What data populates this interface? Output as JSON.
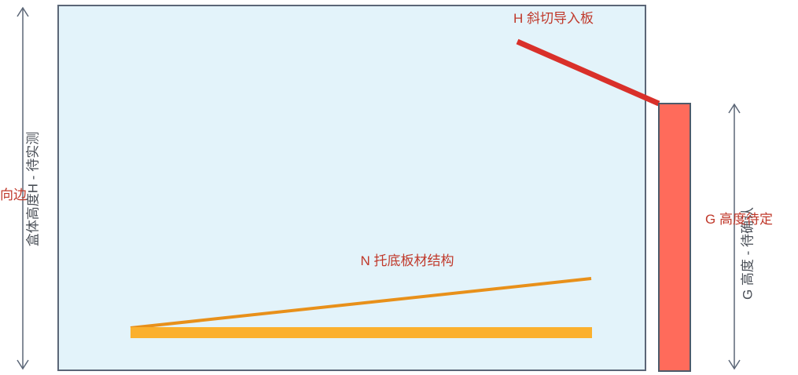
{
  "labels": {
    "left_dimension": "盒体高度H - 待实测",
    "left_overlap": "向边",
    "chamfer_board": "H 斜切导入板",
    "base_structure": "N 托底板材结构",
    "right_dimension": "G 高度 - 待确认",
    "right_side": "G 高度待定"
  },
  "colors": {
    "box_fill": "#e3f3fa",
    "box_stroke": "#5b6677",
    "dimension_line": "#5b6677",
    "chamfer_line": "#d9302a",
    "base_line": "#e8901a",
    "base_bar": "#fbb02e",
    "side_block_fill": "#ff6b5b",
    "side_block_stroke": "#4d5a6a",
    "label_red": "#c0392b",
    "label_gray": "#4a4f57"
  }
}
